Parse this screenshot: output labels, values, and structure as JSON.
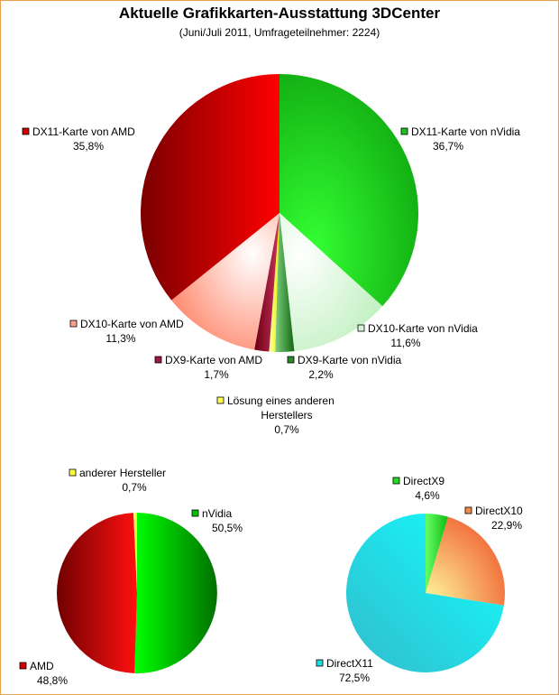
{
  "title": "Aktuelle Grafikkarten-Ausstattung 3DCenter",
  "subtitle": "(Juni/Juli 2011, Umfrageteilnehmer: 2224)",
  "chart_data": [
    {
      "type": "pie",
      "slices": [
        {
          "label": "DX11-Karte von nVidia",
          "value": 36.7,
          "display": "36,7%",
          "color": "#1fc01f"
        },
        {
          "label": "DX10-Karte von nVidia",
          "value": 11.6,
          "display": "11,6%",
          "color": "#d6f5d6"
        },
        {
          "label": "DX9-Karte von nVidia",
          "value": 2.2,
          "display": "2,2%",
          "color": "#2a8a2a"
        },
        {
          "label": "Lösung eines anderen Herstellers",
          "value": 0.7,
          "display": "0,7%",
          "color": "#ffff55"
        },
        {
          "label": "DX9-Karte von AMD",
          "value": 1.7,
          "display": "1,7%",
          "color": "#a01840"
        },
        {
          "label": "DX10-Karte von AMD",
          "value": 11.3,
          "display": "11,3%",
          "color": "#ffa08a"
        },
        {
          "label": "DX11-Karte von AMD",
          "value": 35.8,
          "display": "35,8%",
          "color": "#d00000"
        }
      ]
    },
    {
      "type": "pie",
      "slices": [
        {
          "label": "nVidia",
          "value": 50.5,
          "display": "50,5%",
          "color": "#00c000"
        },
        {
          "label": "AMD",
          "value": 48.8,
          "display": "48,8%",
          "color": "#d00000"
        },
        {
          "label": "anderer Hersteller",
          "value": 0.7,
          "display": "0,7%",
          "color": "#ffff40"
        }
      ]
    },
    {
      "type": "pie",
      "slices": [
        {
          "label": "DirectX9",
          "value": 4.6,
          "display": "4,6%",
          "color": "#22dd22"
        },
        {
          "label": "DirectX10",
          "value": 22.9,
          "display": "22,9%",
          "color": "#f58a4a"
        },
        {
          "label": "DirectX11",
          "value": 72.5,
          "display": "72,5%",
          "color": "#22dada"
        }
      ]
    }
  ]
}
